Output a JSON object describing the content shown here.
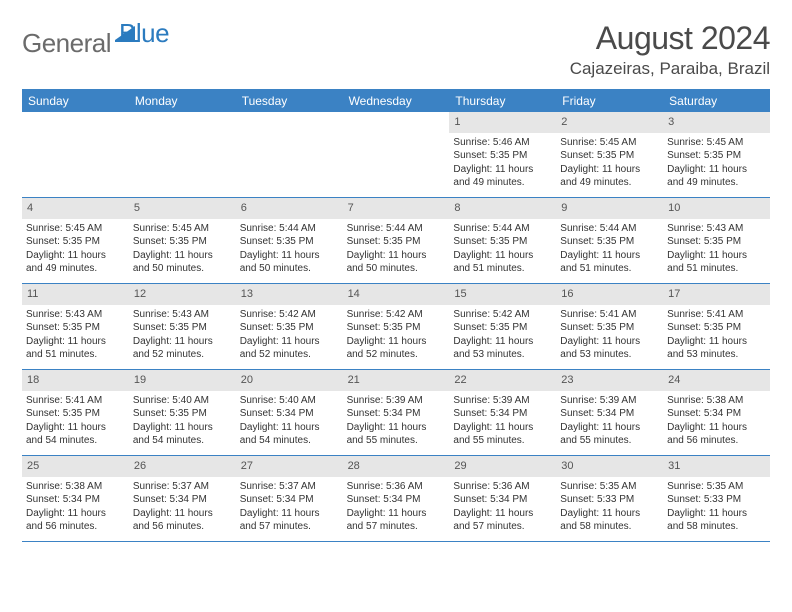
{
  "logo": {
    "general": "General",
    "blue": "Blue",
    "icon_color": "#2b7bbf"
  },
  "header": {
    "title": "August 2024",
    "location": "Cajazeiras, Paraiba, Brazil"
  },
  "weekdays": [
    "Sunday",
    "Monday",
    "Tuesday",
    "Wednesday",
    "Thursday",
    "Friday",
    "Saturday"
  ],
  "colors": {
    "header_bg": "#3b82c4",
    "header_text": "#ffffff",
    "border": "#3b82c4",
    "daynum_bg": "#e6e6e6",
    "body_text": "#333333",
    "title_text": "#4a4a4a"
  },
  "typography": {
    "title_fontsize": 32,
    "location_fontsize": 17,
    "weekday_fontsize": 12,
    "daynum_fontsize": 11,
    "cell_fontsize": 10
  },
  "layout": {
    "columns": 7,
    "rows": 5,
    "leading_blanks": 4
  },
  "days": [
    {
      "n": "1",
      "sunrise": "5:46 AM",
      "sunset": "5:35 PM",
      "daylight": "11 hours and 49 minutes."
    },
    {
      "n": "2",
      "sunrise": "5:45 AM",
      "sunset": "5:35 PM",
      "daylight": "11 hours and 49 minutes."
    },
    {
      "n": "3",
      "sunrise": "5:45 AM",
      "sunset": "5:35 PM",
      "daylight": "11 hours and 49 minutes."
    },
    {
      "n": "4",
      "sunrise": "5:45 AM",
      "sunset": "5:35 PM",
      "daylight": "11 hours and 49 minutes."
    },
    {
      "n": "5",
      "sunrise": "5:45 AM",
      "sunset": "5:35 PM",
      "daylight": "11 hours and 50 minutes."
    },
    {
      "n": "6",
      "sunrise": "5:44 AM",
      "sunset": "5:35 PM",
      "daylight": "11 hours and 50 minutes."
    },
    {
      "n": "7",
      "sunrise": "5:44 AM",
      "sunset": "5:35 PM",
      "daylight": "11 hours and 50 minutes."
    },
    {
      "n": "8",
      "sunrise": "5:44 AM",
      "sunset": "5:35 PM",
      "daylight": "11 hours and 51 minutes."
    },
    {
      "n": "9",
      "sunrise": "5:44 AM",
      "sunset": "5:35 PM",
      "daylight": "11 hours and 51 minutes."
    },
    {
      "n": "10",
      "sunrise": "5:43 AM",
      "sunset": "5:35 PM",
      "daylight": "11 hours and 51 minutes."
    },
    {
      "n": "11",
      "sunrise": "5:43 AM",
      "sunset": "5:35 PM",
      "daylight": "11 hours and 51 minutes."
    },
    {
      "n": "12",
      "sunrise": "5:43 AM",
      "sunset": "5:35 PM",
      "daylight": "11 hours and 52 minutes."
    },
    {
      "n": "13",
      "sunrise": "5:42 AM",
      "sunset": "5:35 PM",
      "daylight": "11 hours and 52 minutes."
    },
    {
      "n": "14",
      "sunrise": "5:42 AM",
      "sunset": "5:35 PM",
      "daylight": "11 hours and 52 minutes."
    },
    {
      "n": "15",
      "sunrise": "5:42 AM",
      "sunset": "5:35 PM",
      "daylight": "11 hours and 53 minutes."
    },
    {
      "n": "16",
      "sunrise": "5:41 AM",
      "sunset": "5:35 PM",
      "daylight": "11 hours and 53 minutes."
    },
    {
      "n": "17",
      "sunrise": "5:41 AM",
      "sunset": "5:35 PM",
      "daylight": "11 hours and 53 minutes."
    },
    {
      "n": "18",
      "sunrise": "5:41 AM",
      "sunset": "5:35 PM",
      "daylight": "11 hours and 54 minutes."
    },
    {
      "n": "19",
      "sunrise": "5:40 AM",
      "sunset": "5:35 PM",
      "daylight": "11 hours and 54 minutes."
    },
    {
      "n": "20",
      "sunrise": "5:40 AM",
      "sunset": "5:34 PM",
      "daylight": "11 hours and 54 minutes."
    },
    {
      "n": "21",
      "sunrise": "5:39 AM",
      "sunset": "5:34 PM",
      "daylight": "11 hours and 55 minutes."
    },
    {
      "n": "22",
      "sunrise": "5:39 AM",
      "sunset": "5:34 PM",
      "daylight": "11 hours and 55 minutes."
    },
    {
      "n": "23",
      "sunrise": "5:39 AM",
      "sunset": "5:34 PM",
      "daylight": "11 hours and 55 minutes."
    },
    {
      "n": "24",
      "sunrise": "5:38 AM",
      "sunset": "5:34 PM",
      "daylight": "11 hours and 56 minutes."
    },
    {
      "n": "25",
      "sunrise": "5:38 AM",
      "sunset": "5:34 PM",
      "daylight": "11 hours and 56 minutes."
    },
    {
      "n": "26",
      "sunrise": "5:37 AM",
      "sunset": "5:34 PM",
      "daylight": "11 hours and 56 minutes."
    },
    {
      "n": "27",
      "sunrise": "5:37 AM",
      "sunset": "5:34 PM",
      "daylight": "11 hours and 57 minutes."
    },
    {
      "n": "28",
      "sunrise": "5:36 AM",
      "sunset": "5:34 PM",
      "daylight": "11 hours and 57 minutes."
    },
    {
      "n": "29",
      "sunrise": "5:36 AM",
      "sunset": "5:34 PM",
      "daylight": "11 hours and 57 minutes."
    },
    {
      "n": "30",
      "sunrise": "5:35 AM",
      "sunset": "5:33 PM",
      "daylight": "11 hours and 58 minutes."
    },
    {
      "n": "31",
      "sunrise": "5:35 AM",
      "sunset": "5:33 PM",
      "daylight": "11 hours and 58 minutes."
    }
  ],
  "labels": {
    "sunrise": "Sunrise:",
    "sunset": "Sunset:",
    "daylight": "Daylight:"
  }
}
